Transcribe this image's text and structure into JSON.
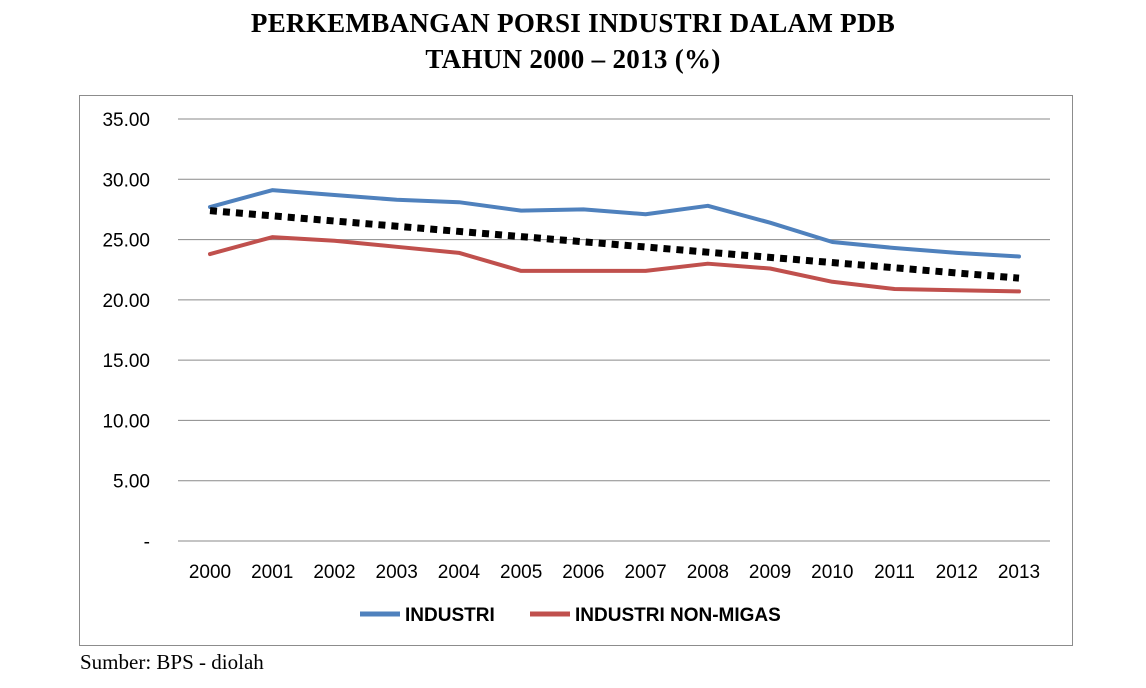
{
  "title_line1": "PERKEMBANGAN PORSI INDUSTRI DALAM PDB",
  "title_line2": "TAHUN 2000 – 2013 (%)",
  "source": "Sumber: BPS - diolah",
  "chart_data": {
    "type": "line",
    "categories": [
      "2000",
      "2001",
      "2002",
      "2003",
      "2004",
      "2005",
      "2006",
      "2007",
      "2008",
      "2009",
      "2010",
      "2011",
      "2012",
      "2013"
    ],
    "ylim": [
      0,
      35
    ],
    "yticks": [
      0,
      5,
      10,
      15,
      20,
      25,
      30,
      35
    ],
    "ytick_labels": [
      "-",
      "5.00",
      "10.00",
      "15.00",
      "20.00",
      "25.00",
      "30.00",
      "35.00"
    ],
    "grid": true,
    "legend_position": "bottom",
    "series": [
      {
        "name": "INDUSTRI",
        "color": "#4f81bd",
        "values": [
          27.7,
          29.1,
          28.7,
          28.3,
          28.1,
          27.4,
          27.5,
          27.1,
          27.8,
          26.4,
          24.8,
          24.3,
          23.9,
          23.6
        ]
      },
      {
        "name": "INDUSTRI NON-MIGAS",
        "color": "#c0504d",
        "values": [
          23.8,
          25.2,
          24.9,
          24.4,
          23.9,
          22.4,
          22.4,
          22.4,
          23.0,
          22.6,
          21.5,
          20.9,
          20.8,
          20.7
        ]
      }
    ],
    "trendline": {
      "style": "dotted",
      "color": "#000000",
      "start": 27.4,
      "end": 21.8
    }
  }
}
